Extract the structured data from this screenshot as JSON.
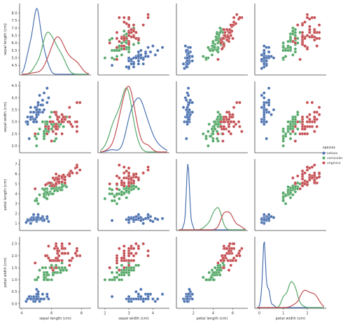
{
  "chart_data": {
    "type": "scatter",
    "title": "",
    "legend": {
      "title": "species",
      "placement": "right",
      "entries": [
        "setosa",
        "versicolor",
        "virginica"
      ]
    },
    "colors": {
      "setosa": "#4c72b0",
      "versicolor": "#55a868",
      "virginica": "#c44e52"
    },
    "variables": [
      {
        "key": "sl",
        "label": "sepal length (cm)",
        "range": [
          4,
          8.5
        ],
        "ticks": [
          "4",
          "6",
          "8"
        ],
        "yticks": [
          "4.5",
          "5.0",
          "5.5",
          "6.0",
          "6.5",
          "7.0",
          "7.5",
          "8.0"
        ],
        "ytick_values": [
          4.5,
          5.0,
          5.5,
          6.0,
          6.5,
          7.0,
          7.5,
          8.0
        ],
        "tick_values": [
          4,
          6,
          8
        ]
      },
      {
        "key": "sw",
        "label": "sepal width (cm)",
        "range": [
          1.8,
          4.6
        ],
        "ticks": [
          "2",
          "3",
          "4",
          "5"
        ],
        "tick_values": [
          2,
          3,
          4,
          5
        ],
        "yticks": [
          "2.0",
          "2.5",
          "3.0",
          "3.5",
          "4.0",
          "4.5"
        ],
        "ytick_values": [
          2.0,
          2.5,
          3.0,
          3.5,
          4.0,
          4.5
        ]
      },
      {
        "key": "pl",
        "label": "petal length (cm)",
        "range": [
          0.5,
          7.3
        ],
        "ticks": [
          "2",
          "4",
          "6"
        ],
        "tick_values": [
          2,
          4,
          6
        ],
        "yticks": [
          "1",
          "2",
          "3",
          "4",
          "5",
          "6",
          "7"
        ],
        "ytick_values": [
          1,
          2,
          3,
          4,
          5,
          6,
          7
        ]
      },
      {
        "key": "pw",
        "label": "petal width (cm)",
        "range": [
          -0.1,
          2.7
        ],
        "ticks": [
          "0",
          "1",
          "2",
          "3"
        ],
        "tick_values": [
          0,
          1,
          2,
          3
        ],
        "yticks": [
          "0.0",
          "0.5",
          "1.0",
          "1.5",
          "2.0",
          "2.5"
        ],
        "ytick_values": [
          0.0,
          0.5,
          1.0,
          1.5,
          2.0,
          2.5
        ]
      }
    ],
    "series": [
      {
        "name": "setosa",
        "points": [
          [
            5.1,
            3.5,
            1.4,
            0.2
          ],
          [
            4.9,
            3.0,
            1.4,
            0.2
          ],
          [
            4.7,
            3.2,
            1.3,
            0.2
          ],
          [
            4.6,
            3.1,
            1.5,
            0.2
          ],
          [
            5.0,
            3.6,
            1.4,
            0.2
          ],
          [
            5.4,
            3.9,
            1.7,
            0.4
          ],
          [
            4.6,
            3.4,
            1.4,
            0.3
          ],
          [
            5.0,
            3.4,
            1.5,
            0.2
          ],
          [
            4.4,
            2.9,
            1.4,
            0.2
          ],
          [
            4.9,
            3.1,
            1.5,
            0.1
          ],
          [
            5.4,
            3.7,
            1.5,
            0.2
          ],
          [
            4.8,
            3.4,
            1.6,
            0.2
          ],
          [
            4.8,
            3.0,
            1.4,
            0.1
          ],
          [
            4.3,
            3.0,
            1.1,
            0.1
          ],
          [
            5.8,
            4.0,
            1.2,
            0.2
          ],
          [
            5.7,
            4.4,
            1.5,
            0.4
          ],
          [
            5.4,
            3.9,
            1.3,
            0.4
          ],
          [
            5.1,
            3.5,
            1.4,
            0.3
          ],
          [
            5.7,
            3.8,
            1.7,
            0.3
          ],
          [
            5.1,
            3.8,
            1.5,
            0.3
          ],
          [
            5.4,
            3.4,
            1.7,
            0.2
          ],
          [
            5.1,
            3.7,
            1.5,
            0.4
          ],
          [
            4.6,
            3.6,
            1.0,
            0.2
          ],
          [
            5.1,
            3.3,
            1.7,
            0.5
          ],
          [
            4.8,
            3.4,
            1.9,
            0.2
          ],
          [
            5.0,
            3.0,
            1.6,
            0.2
          ],
          [
            5.0,
            3.4,
            1.6,
            0.4
          ],
          [
            5.2,
            3.5,
            1.5,
            0.2
          ],
          [
            5.2,
            3.4,
            1.4,
            0.2
          ],
          [
            4.7,
            3.2,
            1.6,
            0.2
          ],
          [
            4.8,
            3.1,
            1.6,
            0.2
          ],
          [
            5.4,
            3.4,
            1.5,
            0.4
          ],
          [
            5.2,
            4.1,
            1.5,
            0.1
          ],
          [
            5.5,
            4.2,
            1.4,
            0.2
          ],
          [
            4.9,
            3.1,
            1.5,
            0.2
          ],
          [
            5.0,
            3.2,
            1.2,
            0.2
          ],
          [
            5.5,
            3.5,
            1.3,
            0.2
          ],
          [
            4.9,
            3.6,
            1.4,
            0.1
          ],
          [
            4.4,
            3.0,
            1.3,
            0.2
          ],
          [
            5.1,
            3.4,
            1.5,
            0.2
          ],
          [
            5.0,
            3.5,
            1.3,
            0.3
          ],
          [
            4.5,
            2.3,
            1.3,
            0.3
          ],
          [
            4.4,
            3.2,
            1.3,
            0.2
          ],
          [
            5.0,
            3.5,
            1.6,
            0.6
          ],
          [
            5.1,
            3.8,
            1.9,
            0.4
          ],
          [
            4.8,
            3.0,
            1.4,
            0.3
          ],
          [
            5.1,
            3.8,
            1.6,
            0.2
          ],
          [
            4.6,
            3.2,
            1.4,
            0.2
          ],
          [
            5.3,
            3.7,
            1.5,
            0.2
          ],
          [
            5.0,
            3.3,
            1.4,
            0.2
          ]
        ]
      },
      {
        "name": "versicolor",
        "points": [
          [
            7.0,
            3.2,
            4.7,
            1.4
          ],
          [
            6.4,
            3.2,
            4.5,
            1.5
          ],
          [
            6.9,
            3.1,
            4.9,
            1.5
          ],
          [
            5.5,
            2.3,
            4.0,
            1.3
          ],
          [
            6.5,
            2.8,
            4.6,
            1.5
          ],
          [
            5.7,
            2.8,
            4.5,
            1.3
          ],
          [
            6.3,
            3.3,
            4.7,
            1.6
          ],
          [
            4.9,
            2.4,
            3.3,
            1.0
          ],
          [
            6.6,
            2.9,
            4.6,
            1.3
          ],
          [
            5.2,
            2.7,
            3.9,
            1.4
          ],
          [
            5.0,
            2.0,
            3.5,
            1.0
          ],
          [
            5.9,
            3.0,
            4.2,
            1.5
          ],
          [
            6.0,
            2.2,
            4.0,
            1.0
          ],
          [
            6.1,
            2.9,
            4.7,
            1.4
          ],
          [
            5.6,
            2.9,
            3.6,
            1.3
          ],
          [
            6.7,
            3.1,
            4.4,
            1.4
          ],
          [
            5.6,
            3.0,
            4.5,
            1.5
          ],
          [
            5.8,
            2.7,
            4.1,
            1.0
          ],
          [
            6.2,
            2.2,
            4.5,
            1.5
          ],
          [
            5.6,
            2.5,
            3.9,
            1.1
          ],
          [
            5.9,
            3.2,
            4.8,
            1.8
          ],
          [
            6.1,
            2.8,
            4.0,
            1.3
          ],
          [
            6.3,
            2.5,
            4.9,
            1.5
          ],
          [
            6.1,
            2.8,
            4.7,
            1.2
          ],
          [
            6.4,
            2.9,
            4.3,
            1.3
          ],
          [
            6.6,
            3.0,
            4.4,
            1.4
          ],
          [
            6.8,
            2.8,
            4.8,
            1.4
          ],
          [
            6.7,
            3.0,
            5.0,
            1.7
          ],
          [
            6.0,
            2.9,
            4.5,
            1.5
          ],
          [
            5.7,
            2.6,
            3.5,
            1.0
          ],
          [
            5.5,
            2.4,
            3.8,
            1.1
          ],
          [
            5.5,
            2.4,
            3.7,
            1.0
          ],
          [
            5.8,
            2.7,
            3.9,
            1.2
          ],
          [
            6.0,
            2.7,
            5.1,
            1.6
          ],
          [
            5.4,
            3.0,
            4.5,
            1.5
          ],
          [
            6.0,
            3.4,
            4.5,
            1.6
          ],
          [
            6.7,
            3.1,
            4.7,
            1.5
          ],
          [
            6.3,
            2.3,
            4.4,
            1.3
          ],
          [
            5.6,
            3.0,
            4.1,
            1.3
          ],
          [
            5.5,
            2.5,
            4.0,
            1.3
          ],
          [
            5.5,
            2.6,
            4.4,
            1.2
          ],
          [
            6.1,
            3.0,
            4.6,
            1.4
          ],
          [
            5.8,
            2.6,
            4.0,
            1.2
          ],
          [
            5.0,
            2.3,
            3.3,
            1.0
          ],
          [
            5.6,
            2.7,
            4.2,
            1.3
          ],
          [
            5.7,
            3.0,
            4.2,
            1.2
          ],
          [
            5.7,
            2.9,
            4.2,
            1.3
          ],
          [
            6.2,
            2.9,
            4.3,
            1.3
          ],
          [
            5.1,
            2.5,
            3.0,
            1.1
          ],
          [
            5.7,
            2.8,
            4.1,
            1.3
          ]
        ]
      },
      {
        "name": "virginica",
        "points": [
          [
            6.3,
            3.3,
            6.0,
            2.5
          ],
          [
            5.8,
            2.7,
            5.1,
            1.9
          ],
          [
            7.1,
            3.0,
            5.9,
            2.1
          ],
          [
            6.3,
            2.9,
            5.6,
            1.8
          ],
          [
            6.5,
            3.0,
            5.8,
            2.2
          ],
          [
            7.6,
            3.0,
            6.6,
            2.1
          ],
          [
            4.9,
            2.5,
            4.5,
            1.7
          ],
          [
            7.3,
            2.9,
            6.3,
            1.8
          ],
          [
            6.7,
            2.5,
            5.8,
            1.8
          ],
          [
            7.2,
            3.6,
            6.1,
            2.5
          ],
          [
            6.5,
            3.2,
            5.1,
            2.0
          ],
          [
            6.4,
            2.7,
            5.3,
            1.9
          ],
          [
            6.8,
            3.0,
            5.5,
            2.1
          ],
          [
            5.7,
            2.5,
            5.0,
            2.0
          ],
          [
            5.8,
            2.8,
            5.1,
            2.4
          ],
          [
            6.4,
            3.2,
            5.3,
            2.3
          ],
          [
            6.5,
            3.0,
            5.5,
            1.8
          ],
          [
            7.7,
            3.8,
            6.7,
            2.2
          ],
          [
            7.7,
            2.6,
            6.9,
            2.3
          ],
          [
            6.0,
            2.2,
            5.0,
            1.5
          ],
          [
            6.9,
            3.2,
            5.7,
            2.3
          ],
          [
            5.6,
            2.8,
            4.9,
            2.0
          ],
          [
            7.7,
            2.8,
            6.7,
            2.0
          ],
          [
            6.3,
            2.7,
            4.9,
            1.8
          ],
          [
            6.7,
            3.3,
            5.7,
            2.1
          ],
          [
            7.2,
            3.2,
            6.0,
            1.8
          ],
          [
            6.2,
            2.8,
            4.8,
            1.8
          ],
          [
            6.1,
            3.0,
            4.9,
            1.8
          ],
          [
            6.4,
            2.8,
            5.6,
            2.1
          ],
          [
            7.2,
            3.0,
            5.8,
            1.6
          ],
          [
            7.4,
            2.8,
            6.1,
            1.9
          ],
          [
            7.9,
            3.8,
            6.4,
            2.0
          ],
          [
            6.4,
            2.8,
            5.6,
            2.2
          ],
          [
            6.3,
            2.8,
            5.1,
            1.5
          ],
          [
            6.1,
            2.6,
            5.6,
            1.4
          ],
          [
            7.7,
            3.0,
            6.1,
            2.3
          ],
          [
            6.3,
            3.4,
            5.6,
            2.4
          ],
          [
            6.4,
            3.1,
            5.5,
            1.8
          ],
          [
            6.0,
            3.0,
            4.8,
            1.8
          ],
          [
            6.9,
            3.1,
            5.4,
            2.1
          ],
          [
            6.7,
            3.1,
            5.6,
            2.4
          ],
          [
            6.9,
            3.1,
            5.1,
            2.3
          ],
          [
            5.8,
            2.7,
            5.1,
            1.9
          ],
          [
            6.8,
            3.2,
            5.9,
            2.3
          ],
          [
            6.7,
            3.3,
            5.7,
            2.5
          ],
          [
            6.7,
            3.0,
            5.2,
            2.3
          ],
          [
            6.3,
            2.5,
            5.0,
            1.9
          ],
          [
            6.5,
            3.0,
            5.2,
            2.0
          ],
          [
            6.2,
            3.4,
            5.4,
            2.3
          ],
          [
            5.9,
            3.0,
            5.1,
            1.8
          ]
        ]
      }
    ],
    "diagonal": "kde",
    "grid": false
  }
}
